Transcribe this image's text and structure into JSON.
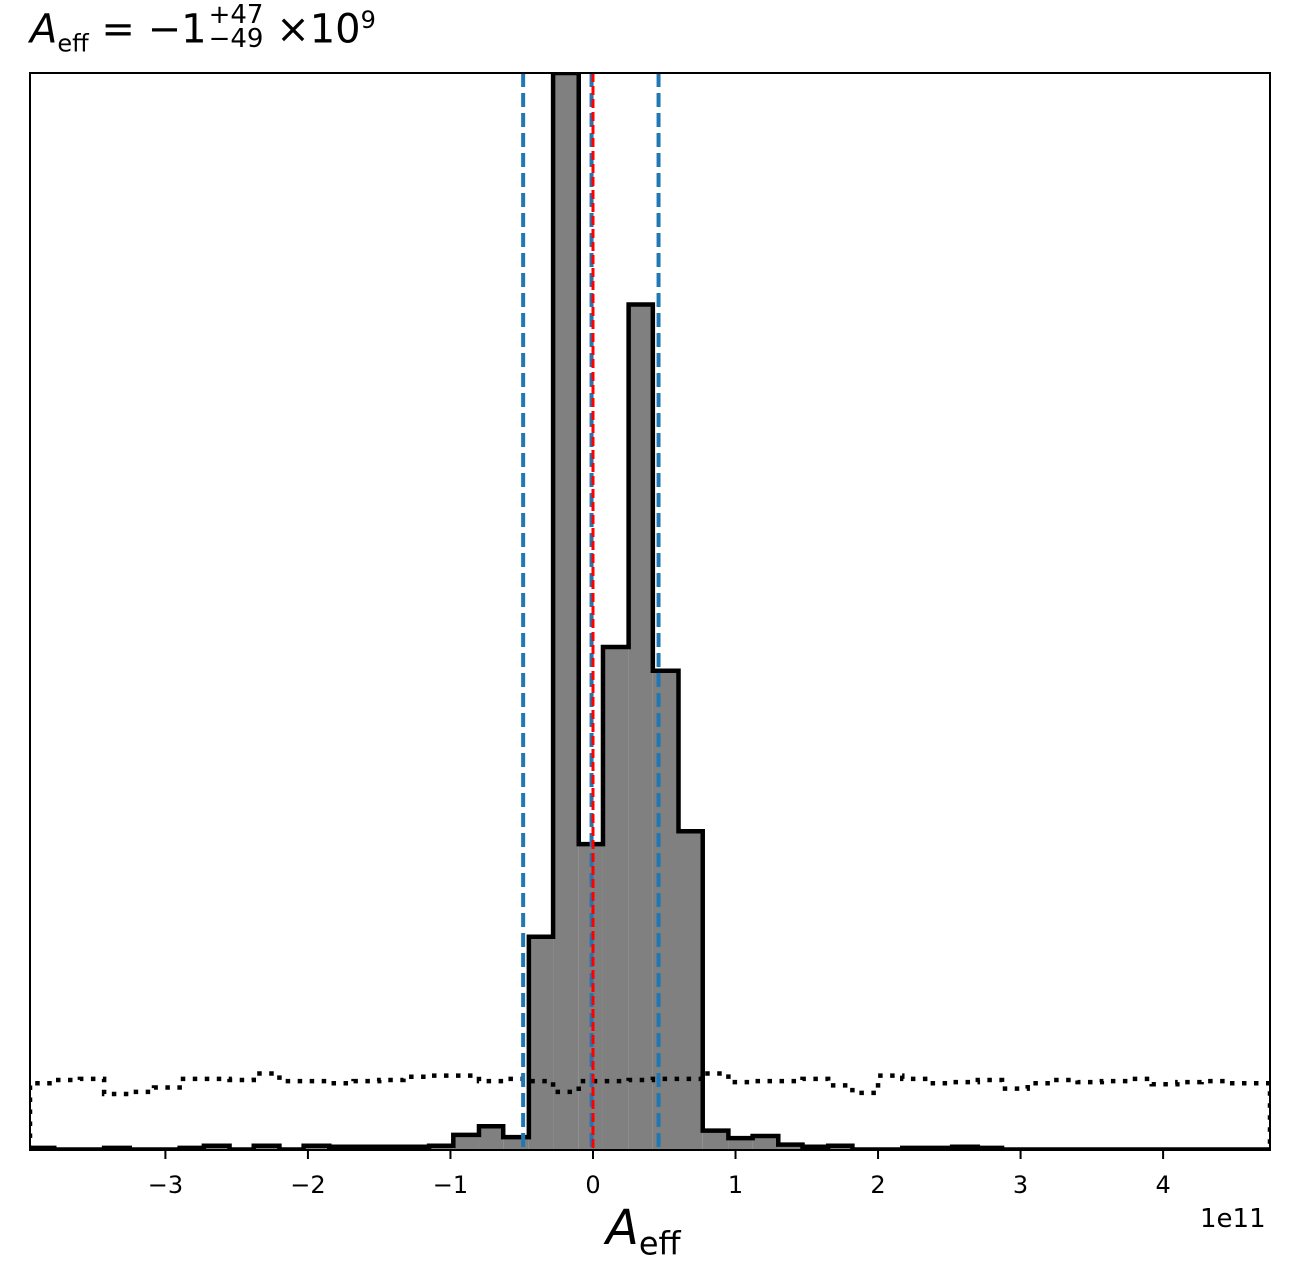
{
  "chart_data": {
    "type": "histogram",
    "title": {
      "symbol": "A",
      "symbol_sub": "eff",
      "equals": "=",
      "value": "−1",
      "upper": "+47",
      "lower": "−49",
      "times": "×",
      "base": "10",
      "exponent": "9"
    },
    "xlabel": {
      "symbol": "A",
      "sub": "eff"
    },
    "x_offset_label": "1e11",
    "xlim": [
      -395000000000.0,
      475000000000.0
    ],
    "ylim": [
      0,
      1.0
    ],
    "x_ticks": [
      -300000000000.0,
      -200000000000.0,
      -100000000000.0,
      0,
      100000000000.0,
      200000000000.0,
      300000000000.0,
      400000000000.0
    ],
    "x_tick_labels": [
      "−3",
      "−2",
      "−1",
      "0",
      "1",
      "2",
      "3",
      "4"
    ],
    "y_ticks_visible": false,
    "grid": false,
    "posterior": {
      "fill_color": "#808080",
      "edge_color": "#000000",
      "bin_edges": [
        -395000000000.0,
        -378000000000.0,
        -360000000000.0,
        -343000000000.0,
        -325000000000.0,
        -308000000000.0,
        -290000000000.0,
        -273000000000.0,
        -255000000000.0,
        -238000000000.0,
        -220000000000.0,
        -203000000000.0,
        -185000000000.0,
        -168000000000.0,
        -150000000000.0,
        -133000000000.0,
        -115000000000.0,
        -98000000000.0,
        -80000000000.0,
        -63000000000.0,
        -45000000000.0,
        -28000000000.0,
        -10000000000.0,
        7000000000.0,
        25000000000.0,
        42000000000.0,
        60000000000.0,
        77000000000.0,
        95000000000.0,
        112000000000.0,
        130000000000.0,
        147000000000.0,
        165000000000.0,
        182000000000.0,
        200000000000.0,
        217000000000.0,
        235000000000.0,
        252000000000.0,
        270000000000.0,
        287000000000.0,
        305000000000.0,
        322000000000.0,
        340000000000.0,
        357000000000.0,
        375000000000.0,
        392000000000.0,
        410000000000.0,
        427000000000.0,
        445000000000.0,
        462000000000.0,
        475000000000.0
      ],
      "counts": [
        0.002,
        0.0005,
        0.0005,
        0.002,
        0.0005,
        0.0005,
        0.002,
        0.004,
        0.0005,
        0.004,
        0.0005,
        0.004,
        0.003,
        0.003,
        0.003,
        0.003,
        0.004,
        0.014,
        0.022,
        0.012,
        0.198,
        1.0,
        0.284,
        0.467,
        0.785,
        0.445,
        0.296,
        0.018,
        0.011,
        0.013,
        0.005,
        0.003,
        0.004,
        0.0005,
        0.0005,
        0.002,
        0.002,
        0.003,
        0.002,
        0.0005,
        0.0005,
        0.0005,
        0.0005,
        0.0005,
        0.0005,
        0.0005,
        0.0005,
        0.0005,
        0.0005,
        0.0005
      ]
    },
    "prior": {
      "line_style": "dotted",
      "edge_color": "#000000",
      "bin_edges": [
        -395000000000.0,
        -378000000000.0,
        -360000000000.0,
        -343000000000.0,
        -325000000000.0,
        -308000000000.0,
        -290000000000.0,
        -273000000000.0,
        -255000000000.0,
        -238000000000.0,
        -220000000000.0,
        -203000000000.0,
        -185000000000.0,
        -168000000000.0,
        -150000000000.0,
        -133000000000.0,
        -115000000000.0,
        -98000000000.0,
        -80000000000.0,
        -63000000000.0,
        -45000000000.0,
        -28000000000.0,
        -10000000000.0,
        7000000000.0,
        25000000000.0,
        42000000000.0,
        60000000000.0,
        77000000000.0,
        95000000000.0,
        112000000000.0,
        130000000000.0,
        147000000000.0,
        165000000000.0,
        182000000000.0,
        200000000000.0,
        217000000000.0,
        235000000000.0,
        252000000000.0,
        270000000000.0,
        287000000000.0,
        305000000000.0,
        322000000000.0,
        340000000000.0,
        357000000000.0,
        375000000000.0,
        392000000000.0,
        410000000000.0,
        427000000000.0,
        445000000000.0,
        462000000000.0,
        475000000000.0
      ],
      "counts": [
        0.062,
        0.065,
        0.066,
        0.052,
        0.054,
        0.058,
        0.066,
        0.066,
        0.065,
        0.071,
        0.064,
        0.064,
        0.062,
        0.064,
        0.065,
        0.068,
        0.069,
        0.069,
        0.064,
        0.066,
        0.064,
        0.054,
        0.064,
        0.064,
        0.065,
        0.066,
        0.066,
        0.071,
        0.063,
        0.064,
        0.064,
        0.066,
        0.06,
        0.053,
        0.069,
        0.066,
        0.062,
        0.063,
        0.065,
        0.057,
        0.062,
        0.065,
        0.063,
        0.064,
        0.066,
        0.061,
        0.063,
        0.064,
        0.062,
        0.062
      ]
    },
    "vertical_lines": [
      {
        "x": -49000000000.0,
        "color": "#1f77b4",
        "style": "dashed"
      },
      {
        "x": -1000000000.0,
        "color": "#1f77b4",
        "style": "dashed"
      },
      {
        "x": 46000000000.0,
        "color": "#1f77b4",
        "style": "dashed"
      },
      {
        "x": 0.0,
        "color": "#ff0000",
        "style": "dashed"
      }
    ]
  }
}
